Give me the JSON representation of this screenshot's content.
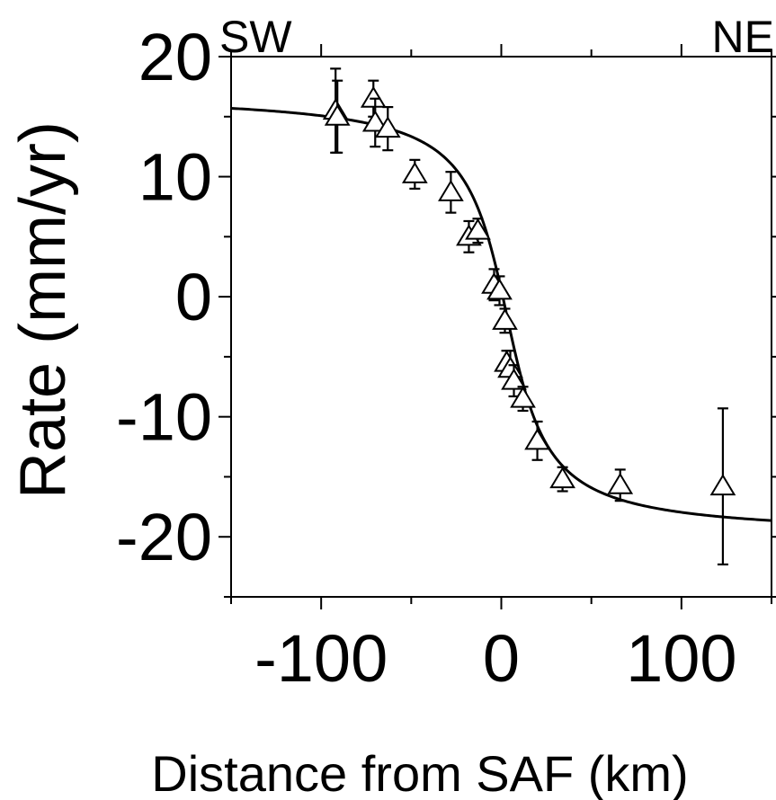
{
  "chart_data": {
    "type": "scatter",
    "xlabel": "Distance from SAF (km)",
    "ylabel": "Rate (mm/yr)",
    "xlim": [
      -150,
      150
    ],
    "ylim": [
      -25,
      20
    ],
    "x_ticks": [
      -100,
      0,
      100
    ],
    "x_tick_labels": [
      "-100",
      "0",
      "100"
    ],
    "y_ticks": [
      -20,
      -10,
      0,
      10,
      20
    ],
    "y_tick_labels": [
      "-20",
      "-10",
      "0",
      "10",
      "20"
    ],
    "corner_labels": {
      "left": "SW",
      "right": "NE"
    },
    "grid": false,
    "legend": "none",
    "series": [
      {
        "kind": "points_with_error_bars",
        "marker": "open-triangle",
        "points": [
          {
            "x": -92,
            "y": 15.5,
            "err": 3.5
          },
          {
            "x": -91,
            "y": 15.0,
            "err": 3.0
          },
          {
            "x": -71,
            "y": 16.5,
            "err": 1.5
          },
          {
            "x": -70,
            "y": 14.5,
            "err": 2.0
          },
          {
            "x": -63,
            "y": 14.0,
            "err": 1.8
          },
          {
            "x": -48,
            "y": 10.2,
            "err": 1.2
          },
          {
            "x": -28,
            "y": 8.7,
            "err": 1.7
          },
          {
            "x": -18,
            "y": 5.0,
            "err": 1.3
          },
          {
            "x": -13,
            "y": 5.5,
            "err": 1.0
          },
          {
            "x": -4,
            "y": 1.0,
            "err": 1.3
          },
          {
            "x": -1,
            "y": 0.5,
            "err": 1.2
          },
          {
            "x": 2,
            "y": -2.0,
            "err": 1.0
          },
          {
            "x": 3,
            "y": -5.5,
            "err": 1.0
          },
          {
            "x": 5,
            "y": -6.0,
            "err": 1.5
          },
          {
            "x": 7,
            "y": -7.0,
            "err": 1.3
          },
          {
            "x": 12,
            "y": -8.5,
            "err": 1.0
          },
          {
            "x": 20,
            "y": -12.0,
            "err": 1.6
          },
          {
            "x": 34,
            "y": -15.2,
            "err": 1.0
          },
          {
            "x": 66,
            "y": -15.7,
            "err": 1.3
          },
          {
            "x": 123,
            "y": -15.8,
            "err": 6.5
          }
        ]
      },
      {
        "kind": "model_curve",
        "style": "solid",
        "equation": "y = c - (2V/pi) * atan((x - x0)/D)",
        "params": {
          "V": 18.5,
          "D": 17,
          "c": -1.5,
          "x0": 3
        }
      }
    ]
  }
}
